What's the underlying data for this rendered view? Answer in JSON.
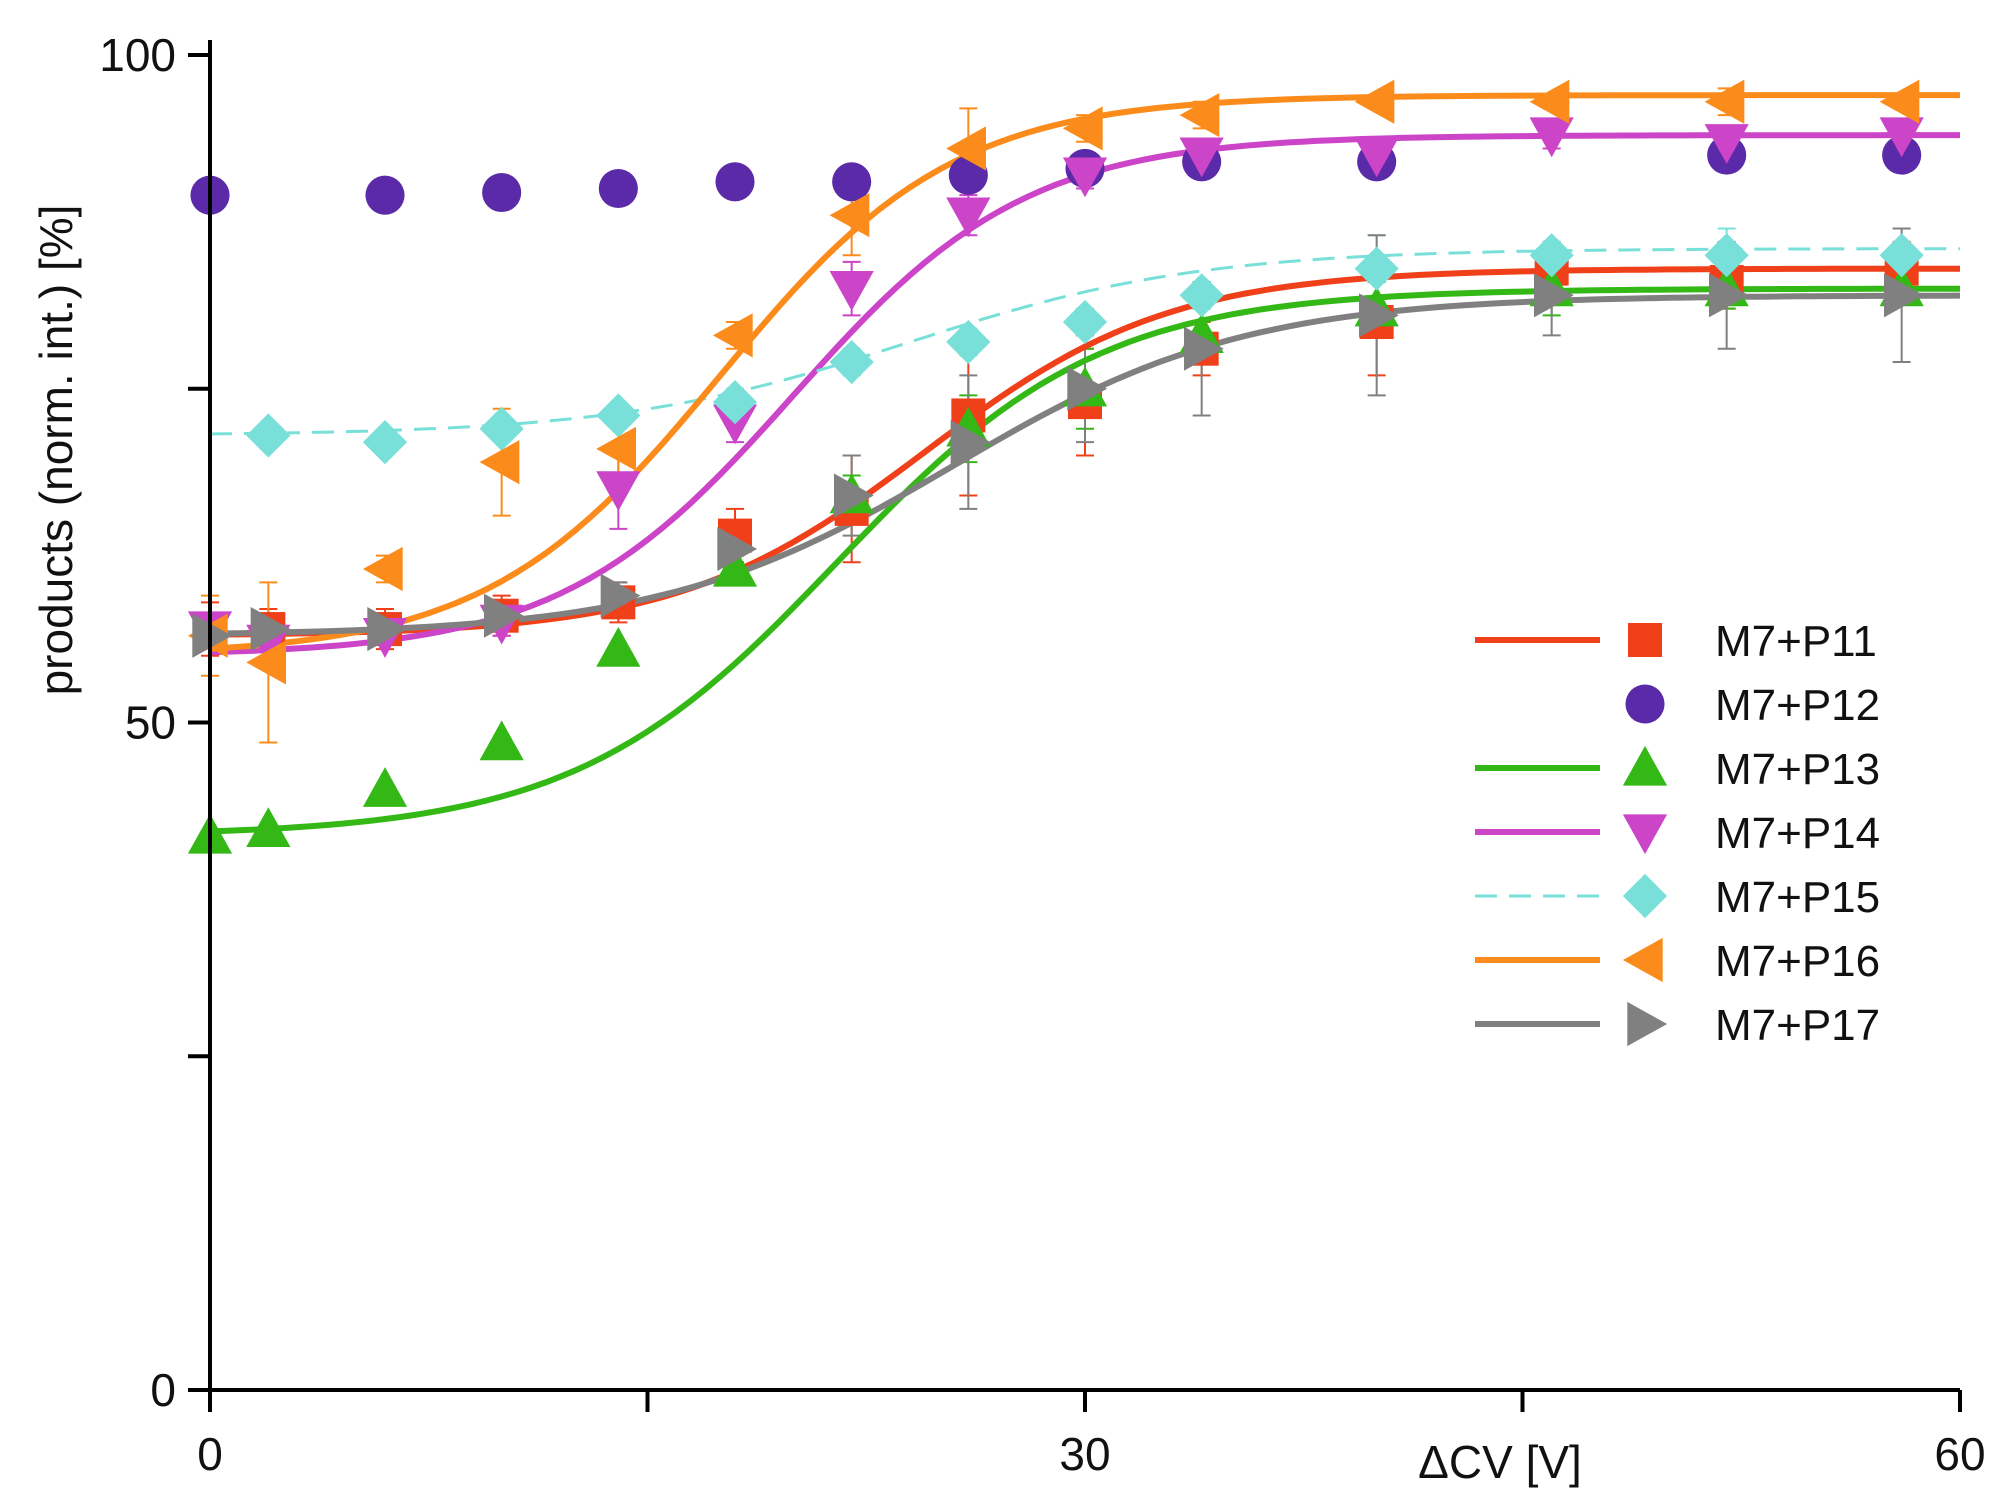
{
  "chart_data": {
    "type": "scatter",
    "title": "",
    "xlabel": "ΔCV [V]",
    "ylabel": "products (norm. int.) [%]",
    "xlim": [
      0,
      60
    ],
    "ylim": [
      0,
      100
    ],
    "x_ticks": [
      0,
      15,
      30,
      45,
      60
    ],
    "x_tick_labels": [
      "0",
      "",
      "30",
      "",
      "60"
    ],
    "y_ticks": [
      0,
      25,
      50,
      75,
      100
    ],
    "y_tick_labels": [
      "0",
      "",
      "50",
      "",
      "100"
    ],
    "grid": false,
    "legend_position": "center-right",
    "series": [
      {
        "name": "M7+P11",
        "color": "#f0401a",
        "marker": "square",
        "line": "solid",
        "x": [
          0,
          2,
          6,
          10,
          14,
          18,
          22,
          26,
          30,
          34,
          40,
          46,
          52,
          58
        ],
        "y": [
          57,
          57,
          57,
          58,
          59,
          64,
          66,
          73,
          74,
          78,
          80,
          84,
          83,
          84
        ],
        "err": [
          2,
          1.5,
          1.5,
          1.5,
          1.5,
          2,
          4,
          6,
          4,
          2,
          4,
          2,
          2,
          2
        ],
        "fit": {
          "base": 56.5,
          "top": 84,
          "mid": 24.5,
          "width": 4.2
        }
      },
      {
        "name": "M7+P12",
        "color": "#5b2aa8",
        "marker": "circle",
        "line": "none",
        "x": [
          0,
          6,
          10,
          14,
          18,
          22,
          26,
          30,
          34,
          40,
          52,
          58
        ],
        "y": [
          89.5,
          89.5,
          89.7,
          90,
          90.5,
          90.5,
          91,
          91.5,
          92,
          92,
          92.5,
          92.5
        ],
        "err": []
      },
      {
        "name": "M7+P13",
        "color": "#33b816",
        "marker": "triangle-up",
        "line": "solid",
        "x": [
          0,
          2,
          6,
          10,
          14,
          18,
          22,
          26,
          30,
          34,
          40,
          46,
          52,
          58
        ],
        "y": [
          41.5,
          42,
          45,
          48.5,
          55.5,
          61.5,
          67,
          72,
          75,
          79,
          81,
          82.5,
          82.5,
          82.5
        ],
        "err": [
          0,
          0,
          0,
          0,
          0,
          1,
          1.5,
          2.5,
          3,
          2,
          2,
          2,
          1.5,
          1
        ],
        "fit": {
          "base": 41.5,
          "top": 82.5,
          "mid": 21.5,
          "width": 4.5
        }
      },
      {
        "name": "M7+P14",
        "color": "#cc44c8",
        "marker": "triangle-down",
        "line": "solid",
        "x": [
          0,
          2,
          6,
          10,
          14,
          18,
          22,
          26,
          30,
          34,
          40,
          46,
          52,
          58
        ],
        "y": [
          57,
          56,
          56.5,
          57.5,
          67.5,
          72.5,
          82.5,
          88,
          91,
          92.5,
          92.5,
          94,
          93.5,
          94
        ],
        "err": [
          0,
          0,
          0,
          1,
          3,
          1.5,
          2,
          1.5,
          1,
          1,
          1,
          1,
          1,
          1
        ],
        "fit": {
          "base": 55,
          "top": 94,
          "mid": 20,
          "width": 4
        }
      },
      {
        "name": "M7+P15",
        "color": "#78e0d8",
        "marker": "diamond",
        "line": "dashed",
        "x": [
          2,
          6,
          10,
          14,
          18,
          22,
          26,
          30,
          34,
          40,
          46,
          52,
          58
        ],
        "y": [
          71.5,
          71,
          72,
          73,
          74,
          77,
          78.5,
          80,
          82,
          84,
          85,
          85,
          85
        ],
        "err": [
          0,
          0,
          0.5,
          0.5,
          1,
          1,
          1,
          1,
          1,
          2.5,
          1,
          2,
          2
        ],
        "fit": {
          "base": 71.5,
          "top": 85.5,
          "mid": 24,
          "width": 5
        }
      },
      {
        "name": "M7+P16",
        "color": "#fb8c1c",
        "marker": "triangle-left",
        "line": "solid",
        "x": [
          0,
          2,
          6,
          10,
          14,
          18,
          22,
          26,
          30,
          34,
          40,
          46,
          52,
          58
        ],
        "y": [
          56.5,
          54.5,
          61.5,
          69.5,
          70.5,
          79,
          88,
          93,
          94.5,
          95.5,
          96.5,
          96.5,
          96.5,
          96.5
        ],
        "err": [
          3,
          6,
          1,
          4,
          2,
          1,
          3,
          3,
          1,
          1,
          0.5,
          0.5,
          1,
          0.5
        ],
        "fit": {
          "base": 55,
          "top": 97,
          "mid": 17.5,
          "width": 4
        }
      },
      {
        "name": "M7+P17",
        "color": "#808080",
        "marker": "triangle-right",
        "line": "solid",
        "x": [
          0,
          2,
          6,
          10,
          14,
          18,
          22,
          26,
          30,
          34,
          40,
          46,
          52,
          58
        ],
        "y": [
          56.5,
          57,
          57,
          58,
          59.5,
          63,
          67,
          71,
          75,
          78,
          80.5,
          82,
          82,
          82
        ],
        "err": [
          0,
          0,
          0,
          1,
          1,
          2,
          3,
          5,
          4,
          5,
          6,
          3,
          4,
          5
        ],
        "fit": {
          "base": 56.5,
          "top": 82,
          "mid": 25.5,
          "width": 5
        }
      }
    ]
  }
}
